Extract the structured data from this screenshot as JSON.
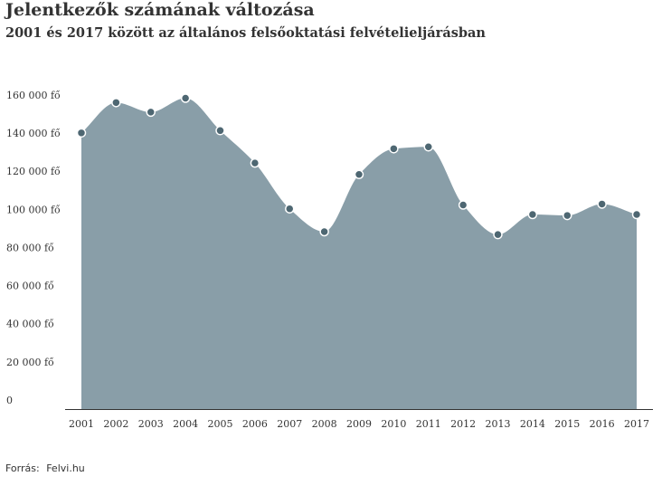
{
  "header": {
    "title": "Jelentkezők számának változása",
    "subtitle": "2001 és 2017 között az általános felsőoktatási felvételieljárásban"
  },
  "source": {
    "label": "Forrás:",
    "value": "Felvi.hu"
  },
  "chart_data": {
    "type": "area",
    "title": "Jelentkezők számának változása",
    "subtitle": "2001 és 2017 között az általános felsőoktatási felvételieljárásban",
    "xlabel": "",
    "ylabel": "",
    "x": [
      "2001",
      "2002",
      "2003",
      "2004",
      "2005",
      "2006",
      "2007",
      "2008",
      "2009",
      "2010",
      "2011",
      "2012",
      "2013",
      "2014",
      "2015",
      "2016",
      "2017"
    ],
    "series": [
      {
        "values": [
          144800,
          160700,
          155700,
          163000,
          146000,
          129000,
          105000,
          93000,
          123000,
          136500,
          137500,
          107000,
          91500,
          102000,
          101500,
          107500,
          102000
        ]
      }
    ],
    "ylim": [
      0,
      170000
    ],
    "yticks": [
      0,
      20000,
      40000,
      60000,
      80000,
      100000,
      120000,
      140000,
      160000
    ],
    "ytick_labels": [
      "0",
      "20 000 fő",
      "40 000 fő",
      "60 000 fő",
      "80 000 fő",
      "100 000 fő",
      "120 000 fő",
      "140 000 fő",
      "160 000 fő"
    ],
    "grid": false,
    "legend": "none",
    "colors": {
      "area": "#899ea8",
      "marker_fill": "#4e6772",
      "marker_stroke": "#ffffff",
      "axis": "#333333"
    }
  }
}
